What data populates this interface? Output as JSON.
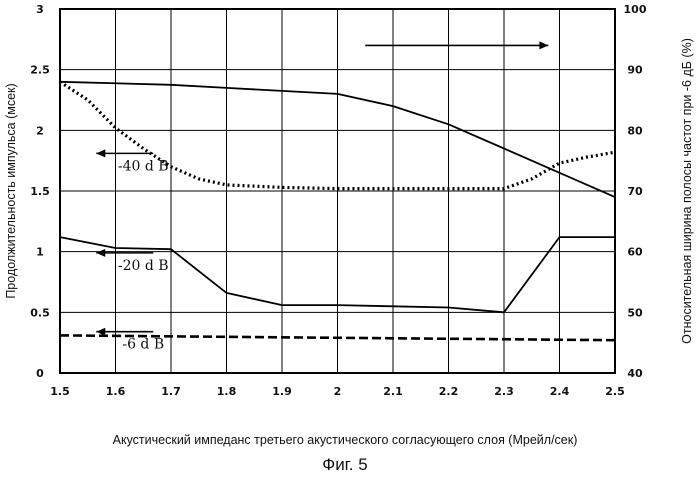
{
  "chart_data": {
    "type": "line",
    "x_label": "Акустический импеданс третьего акустического согласующего слоя (Мрейл/сек)",
    "y_left_label": "Продолжительность импульса (мсек)",
    "y_right_label": "Относительная ширина полосы частот при -6 дБ (%)",
    "caption": "Фиг. 5",
    "x_ticks": [
      "1.5",
      "1.6",
      "1.7",
      "1.8",
      "1.9",
      "2",
      "2.1",
      "2.2",
      "2.3",
      "2.4",
      "2.5"
    ],
    "x_range": [
      1.5,
      2.5
    ],
    "y_left_ticks": [
      "0",
      "0.5",
      "1",
      "1.5",
      "2",
      "2.5",
      "3"
    ],
    "y_left_range": [
      0,
      3
    ],
    "y_right_ticks": [
      "40",
      "50",
      "60",
      "70",
      "80",
      "90",
      "100"
    ],
    "y_right_range": [
      40,
      100
    ],
    "grid": true,
    "series": [
      {
        "axis": "left",
        "style": "dotted",
        "label": "-40 d B",
        "x": [
          1.5,
          1.55,
          1.6,
          1.65,
          1.7,
          1.75,
          1.8,
          1.9,
          2.0,
          2.1,
          2.2,
          2.3,
          2.35,
          2.4,
          2.45,
          2.5
        ],
        "y": [
          2.4,
          2.25,
          2.02,
          1.85,
          1.7,
          1.6,
          1.55,
          1.53,
          1.52,
          1.52,
          1.52,
          1.52,
          1.6,
          1.73,
          1.78,
          1.82
        ]
      },
      {
        "axis": "left",
        "style": "solid",
        "label": "-20 d B",
        "x": [
          1.5,
          1.6,
          1.7,
          1.8,
          1.9,
          2.0,
          2.1,
          2.2,
          2.3,
          2.4,
          2.5
        ],
        "y": [
          1.12,
          1.03,
          1.02,
          0.66,
          0.56,
          0.56,
          0.55,
          0.54,
          0.5,
          1.12,
          1.12
        ]
      },
      {
        "axis": "left",
        "style": "dashed",
        "label": "-6 d B",
        "x": [
          1.5,
          2.5
        ],
        "y": [
          0.31,
          0.27
        ]
      },
      {
        "axis": "right",
        "style": "solid",
        "label": "",
        "x": [
          1.5,
          1.7,
          1.8,
          2.0,
          2.1,
          2.2,
          2.3,
          2.4,
          2.5
        ],
        "y": [
          88,
          87.5,
          87,
          86,
          84,
          81,
          77,
          73,
          69
        ]
      }
    ],
    "annotations": [
      {
        "text": "-40 d B",
        "x": 1.65,
        "y": 1.67,
        "arrow": "left"
      },
      {
        "text": "-20 d B",
        "x": 1.65,
        "y": 0.85,
        "arrow": "left"
      },
      {
        "text": "-6 d B",
        "x": 1.65,
        "y": 0.2,
        "arrow": "left"
      }
    ],
    "right_axis_arrow": {
      "x_from": 2.05,
      "x_to": 2.38,
      "y": 2.7
    }
  }
}
